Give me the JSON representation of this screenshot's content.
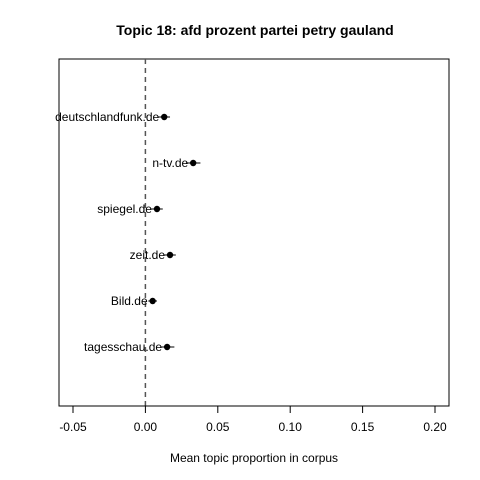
{
  "chart_data": {
    "type": "scatter",
    "title": "Topic 18: afd prozent partei petry gauland",
    "xlabel": "Mean topic proportion in corpus",
    "ylabel": "",
    "xlim": [
      -0.05,
      0.2
    ],
    "xticks": [
      -0.05,
      0.0,
      0.05,
      0.1,
      0.15,
      0.2
    ],
    "xtick_labels": [
      "-0.05",
      "0.00",
      "0.05",
      "0.10",
      "0.15",
      "0.20"
    ],
    "reference_line_x": 0,
    "grid": false,
    "points": [
      {
        "label": "deutschlandfunk.de",
        "value": 0.013,
        "ci": [
          0.009,
          0.017
        ]
      },
      {
        "label": "n-tv.de",
        "value": 0.033,
        "ci": [
          0.028,
          0.038
        ]
      },
      {
        "label": "spiegel.de",
        "value": 0.008,
        "ci": [
          0.004,
          0.012
        ]
      },
      {
        "label": "zeit.de",
        "value": 0.017,
        "ci": [
          0.013,
          0.021
        ]
      },
      {
        "label": "Bild.de",
        "value": 0.005,
        "ci": [
          0.002,
          0.008
        ]
      },
      {
        "label": "tagesschau.de",
        "value": 0.015,
        "ci": [
          0.011,
          0.02
        ]
      }
    ]
  }
}
